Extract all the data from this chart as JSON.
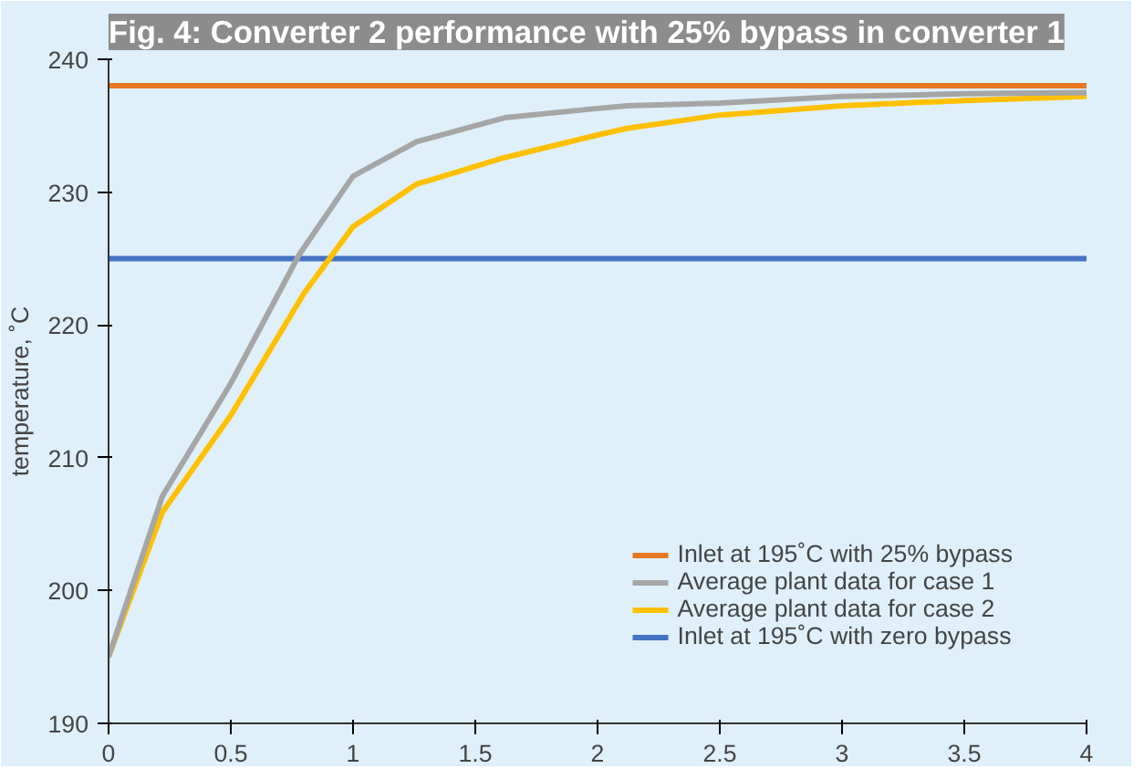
{
  "chart_data": {
    "type": "line",
    "title": "Fig. 4: Converter 2 performance with 25% bypass in converter 1",
    "ylabel": "temperature, ˚C",
    "xlim": [
      0,
      4
    ],
    "ylim": [
      190,
      240
    ],
    "xticks": [
      0,
      0.5,
      1,
      1.5,
      2,
      2.5,
      3,
      3.5,
      4
    ],
    "yticks": [
      190,
      200,
      210,
      220,
      230,
      240
    ],
    "grid": false,
    "legend": "bottom right",
    "line_style": "solid",
    "marker": "none",
    "series": [
      {
        "name": "Inlet at 195˚C with 25% bypass",
        "color": "#e87722",
        "x": [
          0,
          4
        ],
        "values": [
          238,
          238
        ]
      },
      {
        "name": "Average plant data for case 1",
        "color": "#a6a6a6",
        "x": [
          0,
          0.22,
          0.5,
          0.78,
          1.0,
          1.26,
          1.62,
          2.0,
          2.12,
          2.5,
          3,
          3.5,
          4
        ],
        "values": [
          195,
          207.1,
          215.6,
          225.3,
          231.2,
          233.8,
          235.6,
          236.3,
          236.5,
          236.7,
          237.2,
          237.4,
          237.5
        ]
      },
      {
        "name": "Average plant data for case 2",
        "color": "#ffc000",
        "x": [
          0,
          0.22,
          0.5,
          0.8,
          1.0,
          1.26,
          1.62,
          2.0,
          2.12,
          2.5,
          3,
          3.5,
          4
        ],
        "values": [
          195,
          205.9,
          213.2,
          222.4,
          227.4,
          230.6,
          232.6,
          234.3,
          234.8,
          235.8,
          236.5,
          236.9,
          237.2
        ]
      },
      {
        "name": "Inlet at 195˚C with zero bypass",
        "color": "#4472c4",
        "x": [
          0,
          4
        ],
        "values": [
          225,
          225
        ]
      }
    ]
  }
}
